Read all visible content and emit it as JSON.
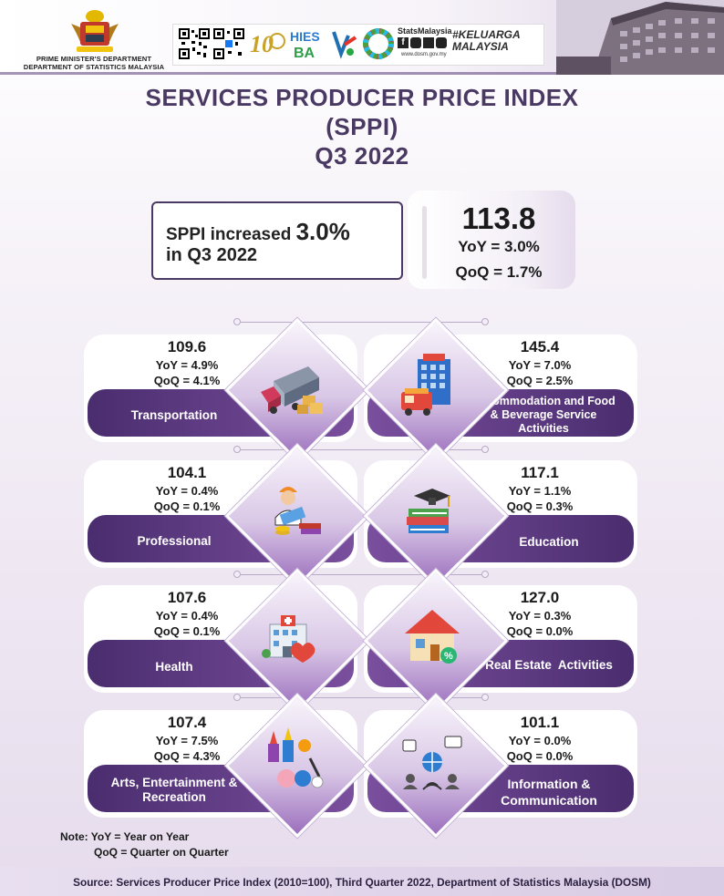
{
  "header": {
    "dept_line1": "PRIME MINISTER'S DEPARTMENT",
    "dept_line2": "DEPARTMENT OF STATISTICS MALAYSIA",
    "logos": [
      "qr-code",
      "qr-code",
      "10-years-dosm",
      "hies-ba-2022",
      "logo-mark",
      "sdg-wheel"
    ],
    "stats_malaysia_label": "StatsMalaysia",
    "website": "www.dosm.gov.my",
    "hashtag": "#KELUARGA MALAYSIA"
  },
  "title": {
    "line1": "SERVICES PRODUCER PRICE INDEX",
    "line2": "(SPPI)",
    "line3": "Q3 2022"
  },
  "summary": {
    "text_prefix": "SPPI increased ",
    "text_value": "3.0%",
    "text_line2": "in Q3 2022",
    "index": "113.8",
    "yoy": "YoY = 3.0%",
    "qoq": "QoQ =  1.7%"
  },
  "sectors": [
    {
      "index": "109.6",
      "yoy": "YoY = 4.9%",
      "qoq": "QoQ = 4.1%",
      "label": "Transportation",
      "icon": "truck-icon"
    },
    {
      "index": "145.4",
      "yoy": "YoY = 7.0%",
      "qoq": "QoQ = 2.5%",
      "label": "Accommodation and Food & Beverage Service Activities",
      "icon": "hotel-icon"
    },
    {
      "index": "104.1",
      "yoy": "YoY = 0.4%",
      "qoq": "QoQ = 0.1%",
      "label": "Professional",
      "icon": "engineer-icon"
    },
    {
      "index": "117.1",
      "yoy": "YoY = 1.1%",
      "qoq": "QoQ = 0.3%",
      "label": "Education",
      "icon": "books-icon"
    },
    {
      "index": "107.6",
      "yoy": "YoY = 0.4%",
      "qoq": "QoQ = 0.1%",
      "label": "Health",
      "icon": "hospital-icon"
    },
    {
      "index": "127.0",
      "yoy": "YoY = 0.3%",
      "qoq": "QoQ = 0.0%",
      "label": "Real Estate  Activities",
      "icon": "house-icon"
    },
    {
      "index": "107.4",
      "yoy": "YoY = 7.5%",
      "qoq": "QoQ = 4.3%",
      "label": "Arts, Entertainment & Recreation",
      "icon": "recreation-icon"
    },
    {
      "index": "101.1",
      "yoy": "YoY = 0.0%",
      "qoq": "QoQ = 0.0%",
      "label": "Information & Communication",
      "icon": "network-icon"
    }
  ],
  "notes": {
    "line1": "Note: YoY = Year on Year",
    "line2": "QoQ = Quarter on Quarter"
  },
  "source": "Source: Services Producer Price Index (2010=100), Third Quarter 2022, Department of Statistics Malaysia (DOSM)",
  "colors": {
    "brand_purple": "#4a2d6e",
    "accent_purple": "#7a4f9e",
    "title_color": "#4a3a63"
  }
}
